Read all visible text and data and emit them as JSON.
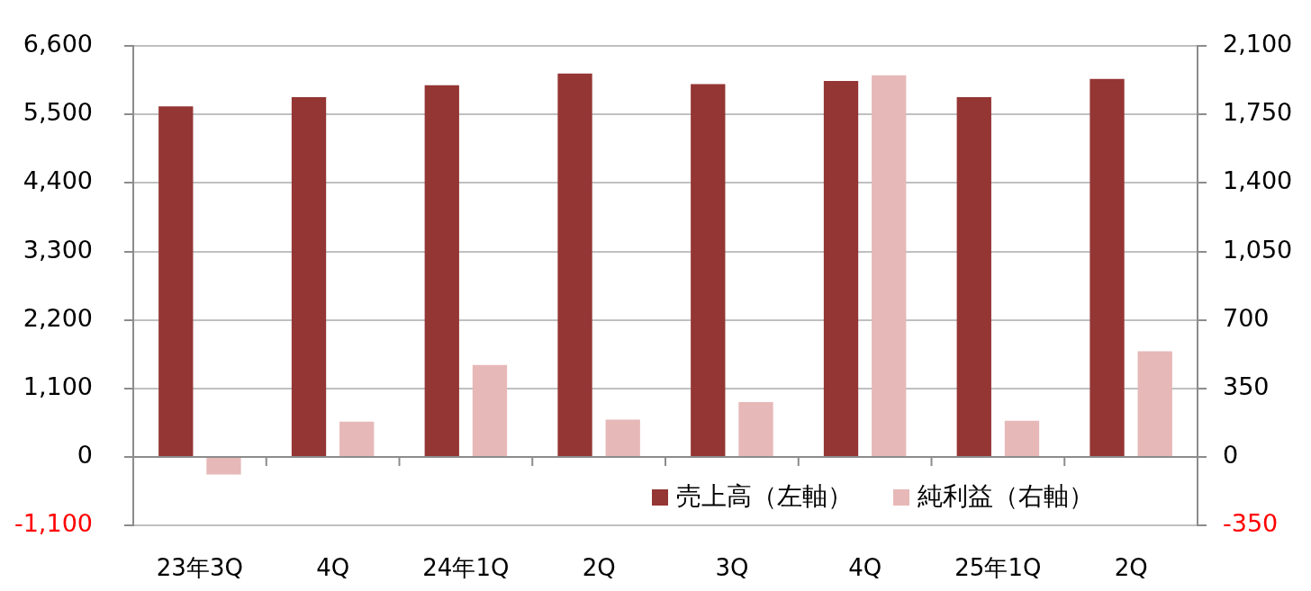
{
  "chart_data": {
    "type": "bar",
    "categories": [
      "23年3Q",
      "4Q",
      "24年1Q",
      "2Q",
      "3Q",
      "4Q",
      "25年1Q",
      "2Q"
    ],
    "series": [
      {
        "name": "売上高（左軸）",
        "color": "#943634",
        "values": [
          5630,
          5780,
          5970,
          6160,
          5990,
          6040,
          5780,
          6070
        ]
      },
      {
        "name": "純利益（右軸）",
        "color": "#e6b8b7",
        "axis": "y2",
        "values": [
          -90,
          180,
          470,
          190,
          280,
          1950,
          185,
          540
        ]
      }
    ],
    "ylim": [
      -1100,
      6600
    ],
    "yticks": [
      {
        "value": -1100,
        "label": "-1,100"
      },
      0,
      {
        "value": 1100,
        "label": "1,100"
      },
      {
        "value": 2200,
        "label": "2,200"
      },
      {
        "value": 3300,
        "label": "3,300"
      },
      {
        "value": 4400,
        "label": "4,400"
      },
      {
        "value": 5500,
        "label": "5,500"
      },
      {
        "value": 6600,
        "label": "6,600"
      }
    ],
    "y2lim": [
      -350,
      2100
    ],
    "y2ticks": [
      -350,
      0,
      350,
      700,
      {
        "value": 1050,
        "label": "1,050"
      },
      {
        "value": 1400,
        "label": "1,400"
      },
      {
        "value": 1750,
        "label": "1,750"
      },
      {
        "value": 2100,
        "label": "2,100"
      }
    ],
    "grid": "y",
    "legend": "bottom right"
  }
}
